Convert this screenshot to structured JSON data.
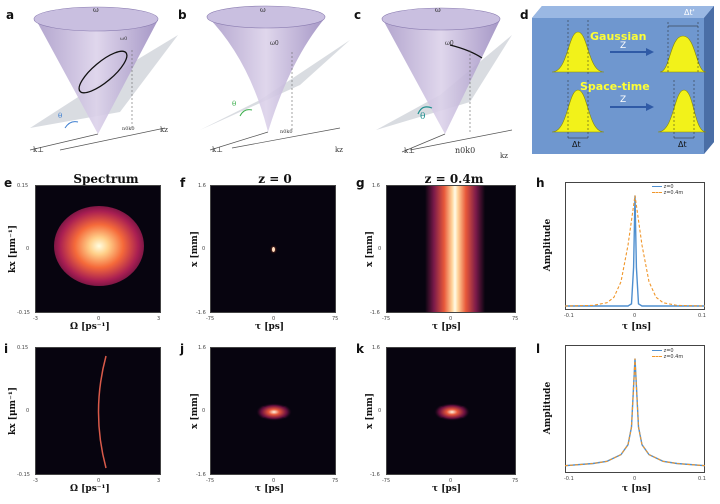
{
  "panels": {
    "a": "a",
    "b": "b",
    "c": "c",
    "d": "d",
    "e": "e",
    "f": "f",
    "g": "g",
    "h": "h",
    "i": "i",
    "j": "j",
    "k": "k",
    "l": "l"
  },
  "cones": {
    "omega": "ω",
    "k_perp": "k⊥",
    "k_z": "kz",
    "theta": "θ",
    "a_omega0": "ω0",
    "a_n0k0": "n0k0",
    "b_omega0": "ω0",
    "b_n0k0": "n0k0",
    "c_omega0": "ω0",
    "c_n0k0": "n0k0"
  },
  "schematic": {
    "gaussian": "Gaussian",
    "space_time": "Space-time",
    "z_top": "Z",
    "z_bottom": "Z",
    "dt_left_top": "Δt",
    "dt_right_top": "Δt'",
    "dt_left_bottom": "Δt",
    "dt_right_bottom": "Δt",
    "colors": {
      "box": "#6f97cf",
      "pulse": "#f2f21a",
      "text": "#ffff33",
      "arrow": "#2f5aa6"
    }
  },
  "titles": {
    "spectrum": "Spectrum",
    "z0": "z = 0",
    "z04": "z = 0.4m"
  },
  "axes": {
    "kx": "kx [μm⁻¹]",
    "Omega": "Ω [ps⁻¹]",
    "x": "x [mm]",
    "tau": "τ [ps]",
    "tau_ns": "τ [ns]",
    "amplitude": "Amplitude"
  },
  "ticks": {
    "e_y": [
      "0.15",
      "0",
      "-0.15"
    ],
    "e_x": [
      "-3",
      "0",
      "3"
    ],
    "f_y": [
      "1.6",
      "0",
      "-1.6"
    ],
    "f_x": [
      "-75",
      "0",
      "75"
    ],
    "h_x": [
      "-0.1",
      "0",
      "0.1"
    ]
  },
  "chart_data": [
    {
      "type": "line",
      "panel": "h",
      "xlabel": "τ [ns]",
      "ylabel": "Amplitude",
      "xlim": [
        -0.1,
        0.1
      ],
      "ylim": [
        0,
        1.05
      ],
      "series": [
        {
          "name": "z=0",
          "color": "#4f8fcf",
          "style": "solid",
          "x": [
            -0.1,
            -0.01,
            -0.005,
            -0.002,
            0,
            0.002,
            0.005,
            0.01,
            0.1
          ],
          "y": [
            0,
            0,
            0.02,
            0.35,
            1.0,
            0.35,
            0.02,
            0,
            0
          ]
        },
        {
          "name": "z=0.4m",
          "color": "#f0962a",
          "style": "dashed",
          "x": [
            -0.1,
            -0.06,
            -0.04,
            -0.03,
            -0.02,
            -0.01,
            0,
            0.01,
            0.02,
            0.03,
            0.04,
            0.06,
            0.1
          ],
          "y": [
            0,
            0.005,
            0.03,
            0.08,
            0.22,
            0.55,
            1.0,
            0.55,
            0.22,
            0.08,
            0.03,
            0.005,
            0
          ]
        }
      ]
    },
    {
      "type": "line",
      "panel": "l",
      "xlabel": "τ [ns]",
      "ylabel": "Amplitude",
      "xlim": [
        -0.1,
        0.1
      ],
      "ylim": [
        0,
        1.05
      ],
      "series": [
        {
          "name": "z=0",
          "color": "#4f8fcf",
          "style": "solid",
          "x": [
            -0.1,
            -0.06,
            -0.04,
            -0.02,
            -0.01,
            -0.005,
            0,
            0.005,
            0.01,
            0.02,
            0.04,
            0.06,
            0.1
          ],
          "y": [
            0.03,
            0.05,
            0.07,
            0.13,
            0.22,
            0.38,
            1.0,
            0.38,
            0.22,
            0.13,
            0.07,
            0.05,
            0.03
          ]
        },
        {
          "name": "z=0.4m",
          "color": "#f0962a",
          "style": "dashed",
          "x": [
            -0.1,
            -0.06,
            -0.04,
            -0.02,
            -0.01,
            -0.005,
            0,
            0.005,
            0.01,
            0.02,
            0.04,
            0.06,
            0.1
          ],
          "y": [
            0.03,
            0.05,
            0.07,
            0.13,
            0.22,
            0.38,
            1.0,
            0.38,
            0.22,
            0.13,
            0.07,
            0.05,
            0.03
          ]
        }
      ]
    }
  ]
}
